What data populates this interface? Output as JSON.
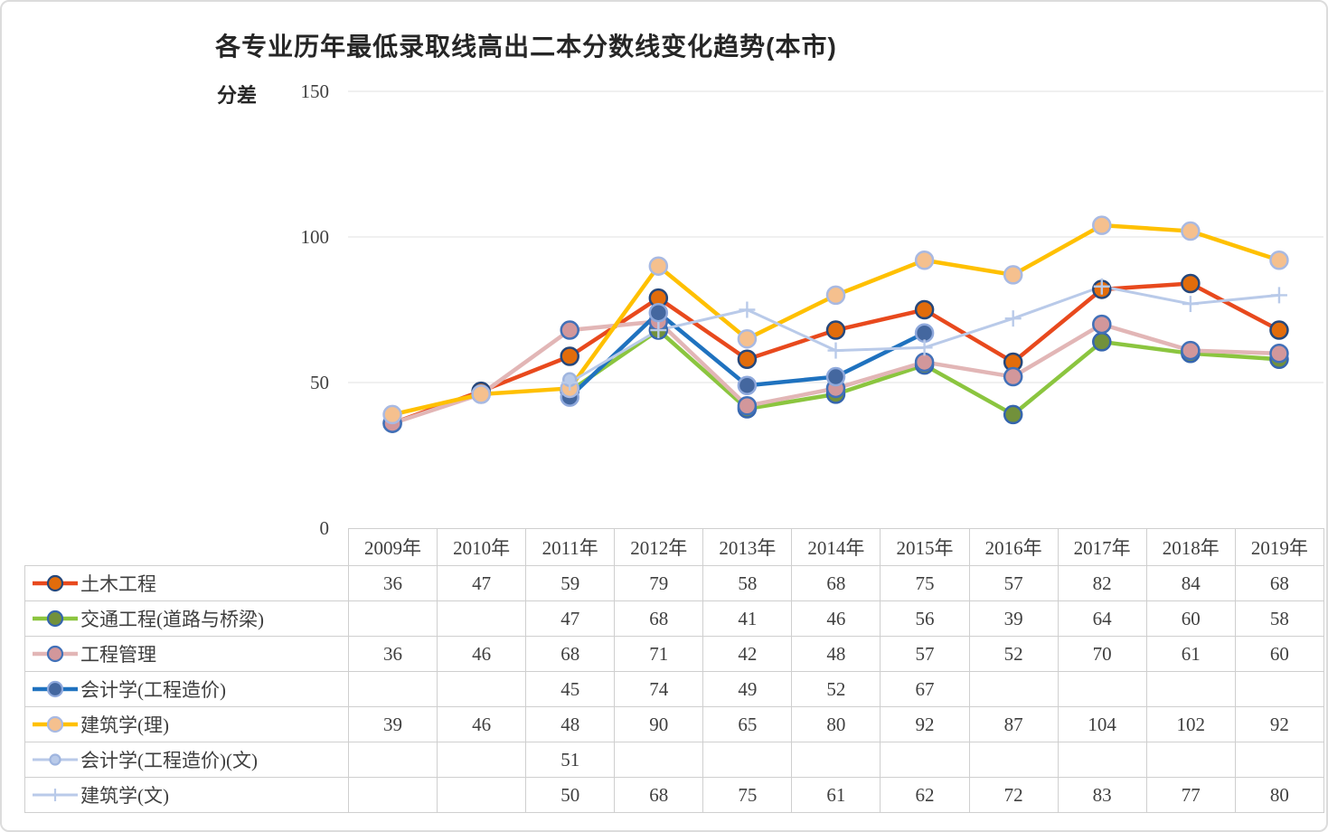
{
  "title": "各专业历年最低录取线高出二本分数线变化趋势(本市)",
  "y_axis": {
    "label": "分差",
    "ticks": [
      "150",
      "100",
      "50",
      "0"
    ]
  },
  "chart_data": {
    "type": "line",
    "title": "各专业历年最低录取线高出二本分数线变化趋势(本市)",
    "ylabel": "分差",
    "ylim": [
      0,
      150
    ],
    "ytick_step": 50,
    "grid": true,
    "legend_position": "table-left",
    "categories": [
      "2009年",
      "2010年",
      "2011年",
      "2012年",
      "2013年",
      "2014年",
      "2015年",
      "2016年",
      "2017年",
      "2018年",
      "2019年"
    ],
    "series": [
      {
        "name": "土木工程",
        "values": [
          36,
          47,
          59,
          79,
          58,
          68,
          75,
          57,
          82,
          84,
          68
        ],
        "line_color": "#E8491D",
        "line_width": 4.5,
        "marker": "circle",
        "marker_fill": "#E26C0B",
        "marker_border": "#25477B"
      },
      {
        "name": "交通工程(道路与桥梁)",
        "values": [
          null,
          null,
          47,
          68,
          41,
          46,
          56,
          39,
          64,
          60,
          58
        ],
        "line_color": "#8BC53F",
        "line_width": 4.5,
        "marker": "circle",
        "marker_fill": "#72913B",
        "marker_border": "#3565AE"
      },
      {
        "name": "工程管理",
        "values": [
          36,
          46,
          68,
          71,
          42,
          48,
          57,
          52,
          70,
          61,
          60
        ],
        "line_color": "#E2B6B6",
        "line_width": 4.5,
        "marker": "circle",
        "marker_fill": "#D2979B",
        "marker_border": "#4170B8"
      },
      {
        "name": "会计学(工程造价)",
        "values": [
          null,
          null,
          45,
          74,
          49,
          52,
          67,
          null,
          null,
          null,
          null
        ],
        "line_color": "#1F72BF",
        "line_width": 4.5,
        "marker": "circle",
        "marker_fill": "#44679F",
        "marker_border": "#8FA9DC"
      },
      {
        "name": "建筑学(理)",
        "values": [
          39,
          46,
          48,
          90,
          65,
          80,
          92,
          87,
          104,
          102,
          92
        ],
        "line_color": "#FFC000",
        "line_width": 4.5,
        "marker": "circle",
        "marker_fill": "#F5C08E",
        "marker_border": "#A8B9E2"
      },
      {
        "name": "会计学(工程造价)(文)",
        "values": [
          null,
          null,
          51,
          null,
          null,
          null,
          null,
          null,
          null,
          null,
          null
        ],
        "line_color": "#B9CAE9",
        "line_width": 3,
        "marker": "circle-small",
        "marker_fill": "#B9CAE9",
        "marker_border": "#9FB5DF"
      },
      {
        "name": "建筑学(文)",
        "values": [
          null,
          null,
          50,
          68,
          75,
          61,
          62,
          72,
          83,
          77,
          80
        ],
        "line_color": "#B9CAE9",
        "line_width": 3,
        "marker": "plus",
        "marker_fill": "#B9CAE9",
        "marker_border": "#B9CAE9"
      }
    ]
  }
}
